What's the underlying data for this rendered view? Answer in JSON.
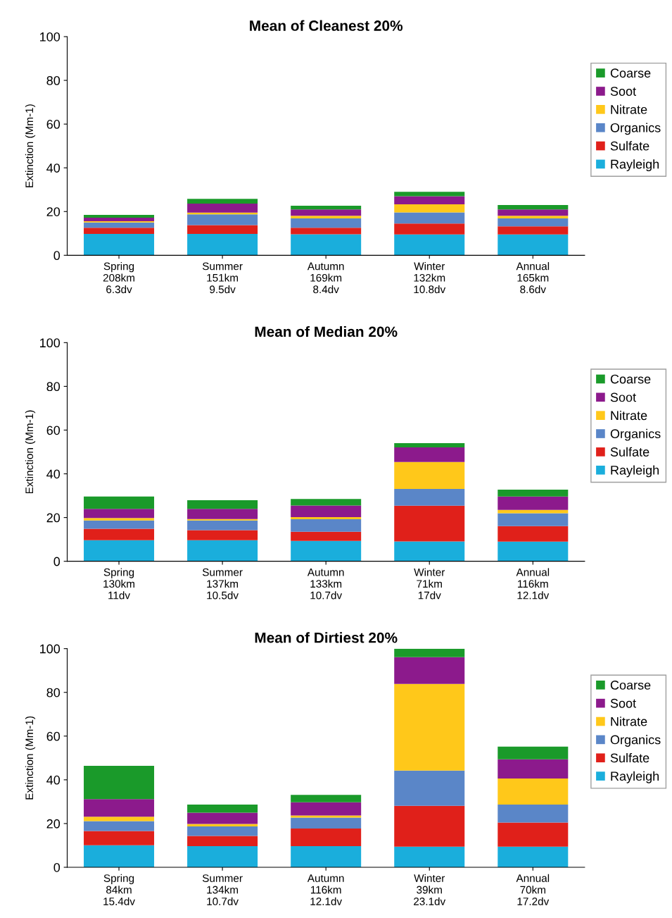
{
  "chart_data": [
    {
      "type": "bar",
      "stacked": true,
      "title": "Mean of Cleanest 20%",
      "ylabel": "Extinction (Mm-1)",
      "categories": [
        "Spring\n208km\n6.3dv",
        "Summer\n151km\n9.5dv",
        "Autumn\n169km\n8.4dv",
        "Winter\n132km\n10.8dv",
        "Annual\n165km\n8.6dv"
      ],
      "ylim": [
        0,
        100
      ],
      "yticks": [
        0,
        20,
        40,
        60,
        80,
        100
      ],
      "grid": false,
      "legend": "right",
      "series": [
        {
          "name": "Rayleigh",
          "color": "#1aaedc",
          "values": [
            9.8,
            9.8,
            9.6,
            9.5,
            9.5
          ]
        },
        {
          "name": "Sulfate",
          "color": "#e0201a",
          "values": [
            2.8,
            4.0,
            3.0,
            5.0,
            3.7
          ]
        },
        {
          "name": "Organics",
          "color": "#5a86c8",
          "values": [
            2.4,
            4.9,
            4.3,
            5.1,
            3.7
          ]
        },
        {
          "name": "Nitrate",
          "color": "#ffc81a",
          "values": [
            0.6,
            0.8,
            1.2,
            3.7,
            1.2
          ]
        },
        {
          "name": "Soot",
          "color": "#8c1a8c",
          "values": [
            1.6,
            4.1,
            2.9,
            3.7,
            2.9
          ]
        },
        {
          "name": "Coarse",
          "color": "#1a9a2a",
          "values": [
            1.3,
            2.2,
            1.7,
            2.0,
            2.0
          ]
        }
      ]
    },
    {
      "type": "bar",
      "stacked": true,
      "title": "Mean of Median 20%",
      "ylabel": "Extinction (Mm-1)",
      "categories": [
        "Spring\n130km\n11dv",
        "Summer\n137km\n10.5dv",
        "Autumn\n133km\n10.7dv",
        "Winter\n71km\n17dv",
        "Annual\n116km\n12.1dv"
      ],
      "ylim": [
        0,
        100
      ],
      "yticks": [
        0,
        20,
        40,
        60,
        80,
        100
      ],
      "grid": false,
      "legend": "right",
      "series": [
        {
          "name": "Rayleigh",
          "color": "#1aaedc",
          "values": [
            9.6,
            9.6,
            9.3,
            9.1,
            9.0
          ]
        },
        {
          "name": "Sulfate",
          "color": "#e0201a",
          "values": [
            5.3,
            4.6,
            4.2,
            16.3,
            7.1
          ]
        },
        {
          "name": "Organics",
          "color": "#5a86c8",
          "values": [
            3.8,
            4.5,
            5.7,
            7.7,
            5.9
          ]
        },
        {
          "name": "Nitrate",
          "color": "#ffc81a",
          "values": [
            1.1,
            0.6,
            1.0,
            12.3,
            1.5
          ]
        },
        {
          "name": "Soot",
          "color": "#8c1a8c",
          "values": [
            4.2,
            4.7,
            5.3,
            6.7,
            6.1
          ]
        },
        {
          "name": "Coarse",
          "color": "#1a9a2a",
          "values": [
            5.6,
            3.9,
            3.0,
            1.9,
            3.2
          ]
        }
      ]
    },
    {
      "type": "bar",
      "stacked": true,
      "title": "Mean of Dirtiest 20%",
      "ylabel": "Extinction (Mm-1)",
      "categories": [
        "Spring\n84km\n15.4dv",
        "Summer\n134km\n10.7dv",
        "Autumn\n116km\n12.1dv",
        "Winter\n39km\n23.1dv",
        "Annual\n70km\n17.2dv"
      ],
      "ylim": [
        0,
        100
      ],
      "yticks": [
        0,
        20,
        40,
        60,
        80,
        100
      ],
      "grid": false,
      "legend": "right",
      "series": [
        {
          "name": "Rayleigh",
          "color": "#1aaedc",
          "values": [
            10.1,
            9.7,
            9.7,
            9.4,
            9.4
          ]
        },
        {
          "name": "Sulfate",
          "color": "#e0201a",
          "values": [
            6.5,
            4.6,
            8.0,
            18.7,
            11.1
          ]
        },
        {
          "name": "Organics",
          "color": "#5a86c8",
          "values": [
            4.5,
            4.4,
            5.0,
            16.1,
            8.2
          ]
        },
        {
          "name": "Nitrate",
          "color": "#ffc81a",
          "values": [
            2.0,
            1.1,
            1.0,
            39.7,
            11.9
          ]
        },
        {
          "name": "Soot",
          "color": "#8c1a8c",
          "values": [
            8.1,
            5.2,
            6.0,
            12.2,
            8.8
          ]
        },
        {
          "name": "Coarse",
          "color": "#1a9a2a",
          "values": [
            15.2,
            3.7,
            3.4,
            3.9,
            5.8
          ]
        }
      ]
    }
  ]
}
